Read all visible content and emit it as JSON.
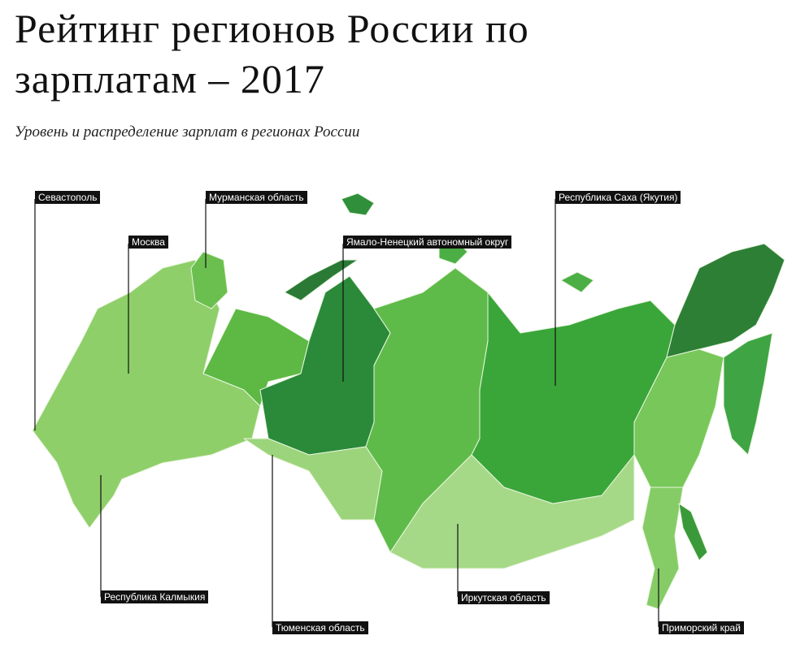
{
  "header": {
    "title": "Рейтинг регионов России по зарплатам – 2017",
    "subtitle": "Уровень и распределение зарплат в регионах России"
  },
  "map": {
    "labels": [
      "Севастополь",
      "Мурманская область",
      "Республика Саха (Якутия)",
      "Москва",
      "Ямало-Ненецкий автономный округ",
      "Республика Калмыкия",
      "Иркутская область",
      "Тюменская область",
      "Приморский край"
    ]
  }
}
